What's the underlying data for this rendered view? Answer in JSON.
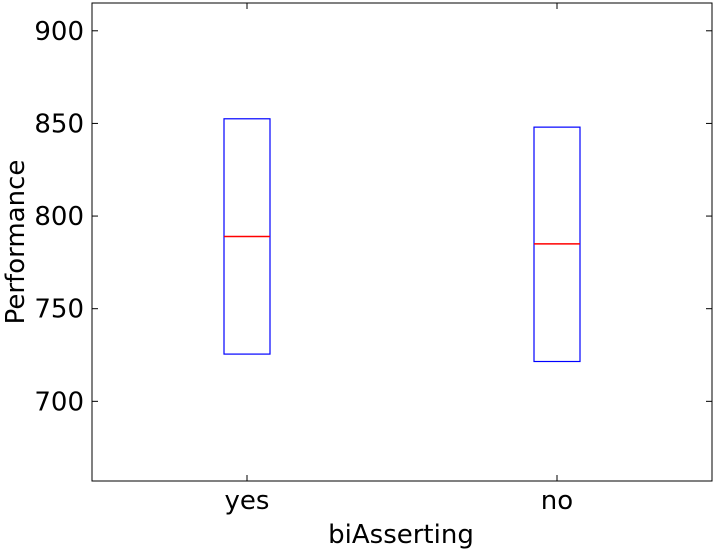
{
  "chart_data": {
    "type": "box",
    "xlabel": "biAsserting",
    "ylabel": "Performance",
    "ylim": [
      657,
      915
    ],
    "yticks": [
      700,
      750,
      800,
      850,
      900
    ],
    "categories": [
      "yes",
      "no"
    ],
    "boxes": [
      {
        "category": "yes",
        "q1": 725.5,
        "median": 789,
        "q3": 852.5
      },
      {
        "category": "no",
        "q1": 721.5,
        "median": 785,
        "q3": 848
      }
    ],
    "grid": false,
    "colors": {
      "box": "#0000ff",
      "median": "#ff0000",
      "axis": "#000000"
    }
  }
}
